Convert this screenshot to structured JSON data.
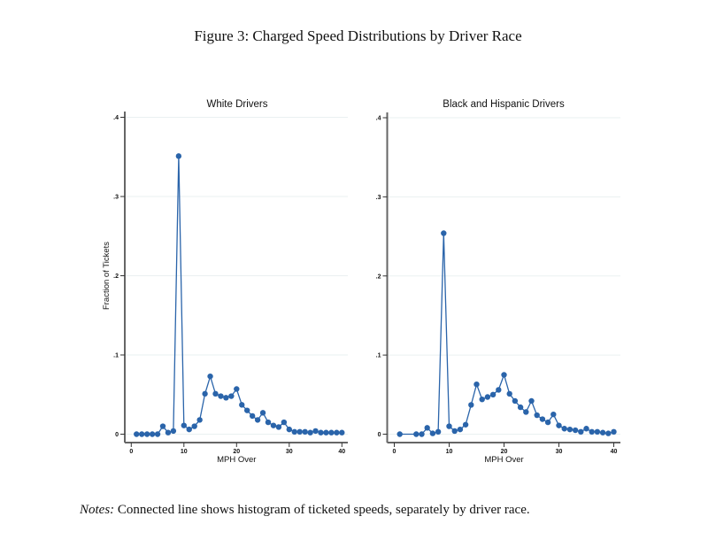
{
  "figure": {
    "title": "Figure 3:  Charged Speed Distributions by Driver Race",
    "notes_label": "Notes:",
    "notes_text": " Connected line shows histogram of ticketed speeds, separately by driver race."
  },
  "colors": {
    "series": "#2a64aa",
    "axis": "#666666",
    "grid": "#eaf0f1"
  },
  "chart_data": [
    {
      "type": "line",
      "title": "White Drivers",
      "xlabel": "MPH Over",
      "ylabel": "Fraction of Tickets",
      "xlim": [
        0,
        40
      ],
      "ylim": [
        0,
        0.4
      ],
      "xticks": [
        0,
        10,
        20,
        30,
        40
      ],
      "xtick_labels": [
        "0",
        "10",
        "20",
        "30",
        "40"
      ],
      "yticks": [
        0,
        0.1,
        0.2,
        0.3,
        0.4
      ],
      "ytick_labels": [
        "0",
        ".1",
        ".2",
        ".3",
        ".4"
      ],
      "grid": true,
      "x": [
        1,
        2,
        3,
        4,
        5,
        6,
        7,
        8,
        9,
        10,
        11,
        12,
        13,
        14,
        15,
        16,
        17,
        18,
        19,
        20,
        21,
        22,
        23,
        24,
        25,
        26,
        27,
        28,
        29,
        30,
        31,
        32,
        33,
        34,
        35,
        36,
        37,
        38,
        39,
        40
      ],
      "y": [
        0.0,
        0.0,
        0.0,
        0.0,
        0.0,
        0.01,
        0.002,
        0.004,
        0.351,
        0.011,
        0.006,
        0.01,
        0.018,
        0.051,
        0.073,
        0.051,
        0.048,
        0.046,
        0.048,
        0.057,
        0.037,
        0.03,
        0.023,
        0.018,
        0.027,
        0.015,
        0.011,
        0.009,
        0.015,
        0.006,
        0.003,
        0.003,
        0.003,
        0.002,
        0.004,
        0.002,
        0.002,
        0.002,
        0.002,
        0.002
      ]
    },
    {
      "type": "line",
      "title": "Black and Hispanic Drivers",
      "xlabel": "MPH Over",
      "ylabel": "",
      "xlim": [
        0,
        40
      ],
      "ylim": [
        0,
        0.4
      ],
      "xticks": [
        0,
        10,
        20,
        30,
        40
      ],
      "xtick_labels": [
        "0",
        "10",
        "20",
        "30",
        "40"
      ],
      "yticks": [
        0,
        0.1,
        0.2,
        0.3,
        0.4
      ],
      "ytick_labels": [
        "0",
        ".1",
        ".2",
        ".3",
        ".4"
      ],
      "grid": true,
      "x": [
        1,
        4,
        5,
        6,
        7,
        8,
        9,
        10,
        11,
        12,
        13,
        14,
        15,
        16,
        17,
        18,
        19,
        20,
        21,
        22,
        23,
        24,
        25,
        26,
        27,
        28,
        29,
        30,
        31,
        32,
        33,
        34,
        35,
        36,
        37,
        38,
        39,
        40
      ],
      "y": [
        0.0,
        0.0,
        0.0,
        0.008,
        0.001,
        0.003,
        0.254,
        0.01,
        0.004,
        0.006,
        0.012,
        0.037,
        0.063,
        0.044,
        0.047,
        0.05,
        0.056,
        0.075,
        0.051,
        0.042,
        0.034,
        0.028,
        0.042,
        0.024,
        0.019,
        0.015,
        0.025,
        0.011,
        0.007,
        0.006,
        0.005,
        0.003,
        0.007,
        0.003,
        0.003,
        0.002,
        0.001,
        0.003
      ]
    }
  ]
}
